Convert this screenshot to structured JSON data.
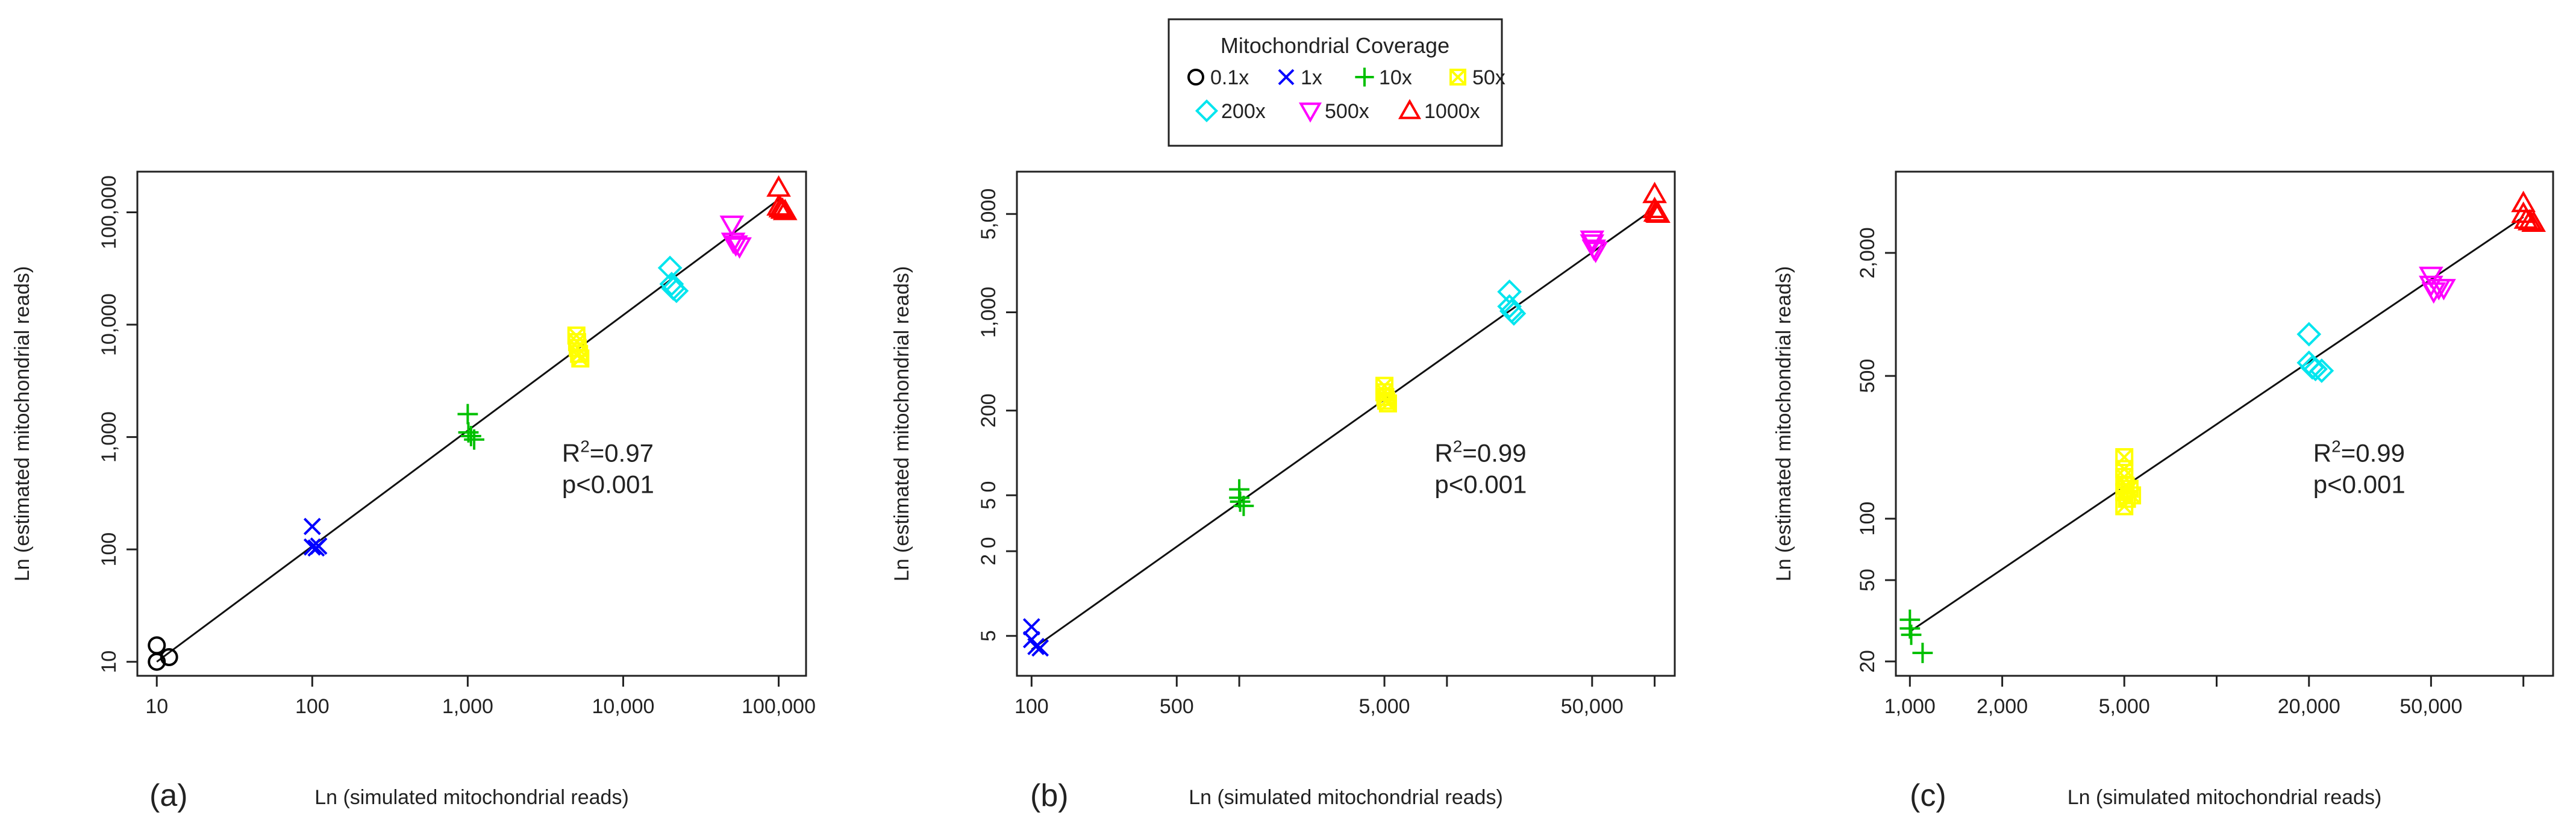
{
  "legend": {
    "title": "Mitochondrial Coverage",
    "items": [
      {
        "label": "0.1x",
        "marker": "circle",
        "color": "#000000"
      },
      {
        "label": "1x",
        "marker": "x",
        "color": "#0000ff"
      },
      {
        "label": "10x",
        "marker": "plus",
        "color": "#00c000"
      },
      {
        "label": "50x",
        "marker": "square-x",
        "color": "#ffff00"
      },
      {
        "label": "200x",
        "marker": "diamond",
        "color": "#00e5ee"
      },
      {
        "label": "500x",
        "marker": "triangle-down",
        "color": "#ff00ff"
      },
      {
        "label": "1000x",
        "marker": "triangle-up",
        "color": "#ff0000"
      }
    ]
  },
  "chart_data": [
    {
      "type": "scatter",
      "panel_label": "(a)",
      "xlabel": "Ln (simulated mitochondrial reads)",
      "ylabel": "Ln (estimated mitochondrial reads)",
      "log_x": true,
      "log_y": true,
      "xlim": [
        7.5,
        150000
      ],
      "ylim": [
        7.5,
        230000
      ],
      "xticks": [
        10,
        100,
        1000,
        10000,
        100000
      ],
      "xtick_labels": [
        "10",
        "100",
        "1,000",
        "10,000",
        "100,000"
      ],
      "yticks": [
        10,
        100,
        1000,
        10000,
        100000
      ],
      "ytick_labels": [
        "10",
        "100",
        "1,000",
        "10,000",
        "100,000"
      ],
      "fit_line": {
        "x": [
          10,
          100000
        ],
        "y": [
          10,
          130000
        ]
      },
      "annotation": {
        "r2_prefix": "R",
        "r2_sup": "2",
        "r2_value": "=0.97",
        "p_text": "p<0.001"
      },
      "series": [
        {
          "name": "0.1x",
          "points": [
            [
              10,
              14
            ],
            [
              10,
              10
            ],
            [
              12,
              11
            ]
          ]
        },
        {
          "name": "1x",
          "points": [
            [
              100,
              160
            ],
            [
              100,
              105
            ],
            [
              106,
              103
            ],
            [
              110,
              107
            ]
          ]
        },
        {
          "name": "10x",
          "points": [
            [
              1000,
              1600
            ],
            [
              1010,
              1100
            ],
            [
              1050,
              1020
            ],
            [
              1100,
              950
            ]
          ]
        },
        {
          "name": "50x",
          "points": [
            [
              5000,
              8000
            ],
            [
              5050,
              7000
            ],
            [
              5100,
              6200
            ],
            [
              5200,
              5500
            ],
            [
              5300,
              5000
            ]
          ]
        },
        {
          "name": "200x",
          "points": [
            [
              20000,
              32000
            ],
            [
              20500,
              23000
            ],
            [
              21000,
              21000
            ],
            [
              22000,
              20000
            ]
          ]
        },
        {
          "name": "500x",
          "points": [
            [
              50000,
              78000
            ],
            [
              51000,
              55000
            ],
            [
              53000,
              52000
            ],
            [
              56000,
              50000
            ]
          ]
        },
        {
          "name": "1000x",
          "points": [
            [
              100000,
              165000
            ],
            [
              100000,
              112000
            ],
            [
              103000,
              108000
            ],
            [
              106000,
              105000
            ],
            [
              110000,
              102000
            ]
          ]
        }
      ]
    },
    {
      "type": "scatter",
      "panel_label": "(b)",
      "xlabel": "Ln (simulated mitochondrial reads)",
      "ylabel": "Ln (estimated mitochondrial reads)",
      "log_x": true,
      "log_y": true,
      "xlim": [
        85,
        125000
      ],
      "ylim": [
        2.6,
        10000
      ],
      "xticks": [
        100,
        500,
        1000,
        5000,
        10000,
        50000,
        100000
      ],
      "xtick_labels": [
        "100",
        "500",
        "",
        "5,000",
        "",
        "50,000",
        ""
      ],
      "yticks": [
        5,
        20,
        50,
        200,
        1000,
        5000
      ],
      "ytick_labels": [
        "5",
        "2 0",
        "5 0",
        "200",
        "1,000",
        "5,000"
      ],
      "fit_line": {
        "x": [
          100,
          100000
        ],
        "y": [
          4,
          5500
        ]
      },
      "annotation": {
        "r2_prefix": "R",
        "r2_sup": "2",
        "r2_value": "=0.99",
        "p_text": "p<0.001"
      },
      "series": [
        {
          "name": "1x",
          "points": [
            [
              100,
              5.8
            ],
            [
              100,
              4.7
            ],
            [
              105,
              4.2
            ],
            [
              110,
              4.1
            ]
          ]
        },
        {
          "name": "10x",
          "points": [
            [
              1000,
              55
            ],
            [
              1000,
              48
            ],
            [
              1010,
              45
            ],
            [
              1050,
              42
            ]
          ]
        },
        {
          "name": "50x",
          "points": [
            [
              5000,
              300
            ],
            [
              5000,
              270
            ],
            [
              5050,
              250
            ],
            [
              5100,
              235
            ],
            [
              5200,
              225
            ]
          ]
        },
        {
          "name": "200x",
          "points": [
            [
              20000,
              1400
            ],
            [
              20000,
              1100
            ],
            [
              20500,
              1020
            ],
            [
              21000,
              980
            ]
          ]
        },
        {
          "name": "500x",
          "points": [
            [
              50000,
              3300
            ],
            [
              50000,
              3100
            ],
            [
              51000,
              2850
            ],
            [
              52000,
              2750
            ]
          ]
        },
        {
          "name": "1000x",
          "points": [
            [
              100000,
              6900
            ],
            [
              100000,
              5400
            ],
            [
              101000,
              5100
            ],
            [
              103000,
              5050
            ],
            [
              104000,
              5000
            ]
          ]
        }
      ]
    },
    {
      "type": "scatter",
      "panel_label": "(c)",
      "xlabel": "Ln (simulated mitochondrial reads)",
      "ylabel": "Ln (estimated mitochondrial reads)",
      "log_x": true,
      "log_y": true,
      "xlim": [
        900,
        125000
      ],
      "ylim": [
        17,
        5000
      ],
      "xticks": [
        1000,
        2000,
        5000,
        10000,
        20000,
        50000,
        100000
      ],
      "xtick_labels": [
        "1,000",
        "2,000",
        "5,000",
        "",
        "20,000",
        "50,000",
        ""
      ],
      "yticks": [
        20,
        50,
        100,
        500,
        2000
      ],
      "ytick_labels": [
        "20",
        "50",
        "100",
        "500",
        "2,000"
      ],
      "fit_line": {
        "x": [
          1000,
          100000
        ],
        "y": [
          28,
          3000
        ]
      },
      "annotation": {
        "r2_prefix": "R",
        "r2_sup": "2",
        "r2_value": "=0.99",
        "p_text": "p<0.001"
      },
      "series": [
        {
          "name": "10x",
          "points": [
            [
              1000,
              32
            ],
            [
              1000,
              29
            ],
            [
              1010,
              27
            ],
            [
              1100,
              22
            ]
          ]
        },
        {
          "name": "50x",
          "points": [
            [
              5000,
              200
            ],
            [
              5000,
              175
            ],
            [
              5000,
              160
            ],
            [
              5050,
              145
            ],
            [
              5000,
              135
            ],
            [
              5100,
              125
            ],
            [
              5000,
              115
            ],
            [
              5300,
              130
            ],
            [
              5200,
              140
            ]
          ]
        },
        {
          "name": "200x",
          "points": [
            [
              20000,
              800
            ],
            [
              20000,
              580
            ],
            [
              20500,
              550
            ],
            [
              21000,
              540
            ],
            [
              22000,
              530
            ]
          ]
        },
        {
          "name": "500x",
          "points": [
            [
              50000,
              1550
            ],
            [
              50000,
              1400
            ],
            [
              51000,
              1300
            ],
            [
              53000,
              1350
            ],
            [
              55000,
              1350
            ]
          ]
        },
        {
          "name": "1000x",
          "points": [
            [
              100000,
              3500
            ],
            [
              100000,
              3100
            ],
            [
              102000,
              2900
            ],
            [
              105000,
              2850
            ],
            [
              108000,
              2800
            ]
          ]
        }
      ]
    }
  ]
}
